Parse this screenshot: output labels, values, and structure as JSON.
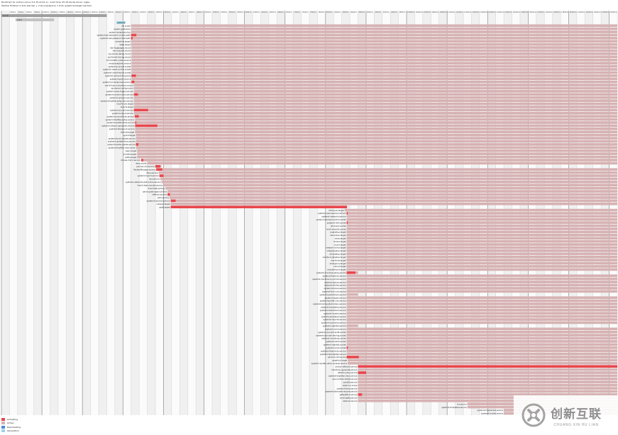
{
  "header": {
    "line1": "Bootchart for archiso (Linux 5.4.15-arch1-1) - boot time: 05:18 kernel-driver: ixgbe",
    "line2": "Startup finished in 6.0s (kernel) + 2.4s (userspace) = 8.4s; graphical.target reached"
  },
  "legend": [
    {
      "label": "Activating",
      "color": "#e8474d"
    },
    {
      "label": "Active",
      "color": "#d7b2b3"
    },
    {
      "label": "Deactivating",
      "color": "#4c8cdd"
    },
    {
      "label": "Generators",
      "color": "#9bd3e8"
    }
  ],
  "colors": {
    "active": "#d7b2b3",
    "activating": "#e8474d",
    "gridline": "#c9c9c9",
    "gridline_major": "#8d8d8d",
    "background_a": "#f0f0f0",
    "background_b": "#fbfbfb",
    "kernel": "#9f9f9f",
    "initrd": "#c3c3c3",
    "generator": "#9bd3e8"
  },
  "chart_data": {
    "type": "table",
    "ylabel": "",
    "xlabel": "",
    "x_unit": "s",
    "xlim": [
      0,
      15.2
    ],
    "tick_step": 0.2,
    "major_tick_every": 5,
    "phases": [
      {
        "name": "kernel",
        "label": "kernel",
        "start": 0.0,
        "end": 2.6
      },
      {
        "name": "initrd",
        "label": "initrd",
        "start": 0.35,
        "end": 1.3
      }
    ],
    "units": [
      {
        "name": "systemd",
        "start": 2.84,
        "activating": 0.0,
        "active_end": 15.2,
        "kind": "generator"
      },
      {
        "name": "init.scope",
        "start": 3.2,
        "activating": 0.0,
        "active_end": 15.2
      },
      {
        "name": "system-getty.slice",
        "start": 3.2,
        "activating": 0.0,
        "active_end": 15.2
      },
      {
        "name": "system-modprobe.slice",
        "start": 3.2,
        "activating": 0.0,
        "active_end": 15.2
      },
      {
        "name": "systemd-ask-password-console.path",
        "start": 3.2,
        "activating": 0.13,
        "active_end": 15.2
      },
      {
        "name": "systemd-ask-password-wall.path",
        "start": 3.2,
        "activating": 0.04,
        "active_end": 15.2
      },
      {
        "name": "remote-fs.target",
        "start": 3.2,
        "activating": 0.0,
        "active_end": 15.2
      },
      {
        "name": "swap.target",
        "start": 3.2,
        "activating": 0.0,
        "active_end": 15.2
      },
      {
        "name": "dev-hugepages.mount",
        "start": 3.21,
        "activating": 0.0,
        "active_end": 15.2
      },
      {
        "name": "dev-mqueue.mount",
        "start": 3.21,
        "activating": 0.0,
        "active_end": 15.2
      },
      {
        "name": "sys-kernel-debug.mount",
        "start": 3.21,
        "activating": 0.0,
        "active_end": 15.2
      },
      {
        "name": "sys-kernel-tracing.mount",
        "start": 3.21,
        "activating": 0.0,
        "active_end": 15.2
      },
      {
        "name": "kmod-static-nodes.service",
        "start": 3.21,
        "activating": 0.0,
        "active_end": 15.2
      },
      {
        "name": "modprobe@drm.service",
        "start": 3.21,
        "activating": 0.0,
        "active_end": 15.2
      },
      {
        "name": "systemd-journald.socket",
        "start": 3.21,
        "activating": 0.0,
        "active_end": 15.2
      },
      {
        "name": "systemd-udevd-control.socket",
        "start": 3.21,
        "activating": 0.0,
        "active_end": 15.2
      },
      {
        "name": "systemd-udevd-kernel.socket",
        "start": 3.21,
        "activating": 0.0,
        "active_end": 15.2
      },
      {
        "name": "systemd-remount-fs.service",
        "start": 3.21,
        "activating": 0.11,
        "active_end": 15.2
      },
      {
        "name": "systemd-sysctl.service",
        "start": 3.21,
        "activating": 0.0,
        "active_end": 15.2
      },
      {
        "name": "systemd-modules-load.service",
        "start": 3.21,
        "activating": 0.07,
        "active_end": 15.2
      },
      {
        "name": "sys-fs-fuse-connections.mount",
        "start": 3.27,
        "activating": 0.0,
        "active_end": 15.2
      },
      {
        "name": "sys-kernel-config.mount",
        "start": 3.27,
        "activating": 0.0,
        "active_end": 15.2
      },
      {
        "name": "systemd-udev-trigger.service",
        "start": 3.27,
        "activating": 0.0,
        "active_end": 15.2
      },
      {
        "name": "systemd-random-seed.service",
        "start": 3.27,
        "activating": 0.1,
        "active_end": 15.2
      },
      {
        "name": "systemd-sysusers.service",
        "start": 3.27,
        "activating": 0.0,
        "active_end": 15.2
      },
      {
        "name": "systemd-tmpfiles-setup-dev.service",
        "start": 3.27,
        "activating": 0.0,
        "active_end": 15.2
      },
      {
        "name": "local-fs-pre.target",
        "start": 3.27,
        "activating": 0.0,
        "active_end": 15.2
      },
      {
        "name": "local-fs.target",
        "start": 3.27,
        "activating": 0.0,
        "active_end": 15.2
      },
      {
        "name": "systemd-journald.service",
        "start": 3.27,
        "activating": 0.35,
        "active_end": 15.2
      },
      {
        "name": "systemd-udevd.service",
        "start": 3.27,
        "activating": 0.0,
        "active_end": 15.2
      },
      {
        "name": "systemd-journal-flush.service",
        "start": 3.29,
        "activating": 0.1,
        "active_end": 15.2
      },
      {
        "name": "systemd-tmpfiles-setup.service",
        "start": 3.3,
        "activating": 0.0,
        "active_end": 15.2
      },
      {
        "name": "systemd-update-utmp.service",
        "start": 3.3,
        "activating": 0.03,
        "active_end": 15.2
      },
      {
        "name": "systemd-network-generator.service",
        "start": 3.3,
        "activating": 0.55,
        "active_end": 15.2
      },
      {
        "name": "systemd-timesyncd.service",
        "start": 3.3,
        "activating": 0.0,
        "active_end": 15.2
      },
      {
        "name": "time-set.target",
        "start": 3.3,
        "activating": 0.0,
        "active_end": 15.2
      },
      {
        "name": "sysinit.target",
        "start": 3.32,
        "activating": 0.0,
        "active_end": 15.2
      },
      {
        "name": "systemd-boot-update.service",
        "start": 3.32,
        "activating": 0.0,
        "active_end": 15.2
      },
      {
        "name": "systemd-update-done.service",
        "start": 3.32,
        "activating": 0.0,
        "active_end": 15.2
      },
      {
        "name": "systemd-hwdb-update.service",
        "start": 3.32,
        "activating": 0.06,
        "active_end": 15.2
      },
      {
        "name": "systemd-tmpfiles-clean.timer",
        "start": 3.32,
        "activating": 0.0,
        "active_end": 15.2
      },
      {
        "name": "basic.target",
        "start": 3.35,
        "activating": 0.0,
        "active_end": 15.2
      },
      {
        "name": "sockets.target",
        "start": 3.35,
        "activating": 0.0,
        "active_end": 15.2
      },
      {
        "name": "paths.target",
        "start": 3.35,
        "activating": 0.0,
        "active_end": 15.2
      },
      {
        "name": "choose-mirror.service",
        "start": 3.45,
        "activating": 0.05,
        "active_end": 15.2
      },
      {
        "name": "dbus.socket",
        "start": 3.6,
        "activating": 0.0,
        "active_end": 15.2
      },
      {
        "name": "pacman-init.service",
        "start": 3.8,
        "activating": 0.12,
        "active_end": 3.95
      },
      {
        "name": "ModemManager.service",
        "start": 3.82,
        "activating": 0.15,
        "active_end": 15.2
      },
      {
        "name": "dbus.service",
        "start": 3.88,
        "activating": 0.0,
        "active_end": 15.2
      },
      {
        "name": "systemd-logind.service",
        "start": 3.9,
        "activating": 0.1,
        "active_end": 15.2
      },
      {
        "name": "iwd.service",
        "start": 3.92,
        "activating": 0.0,
        "active_end": 15.2
      },
      {
        "name": "systemd-networkd-wait-online.service",
        "start": 3.95,
        "activating": 0.0,
        "active_end": 15.2
      },
      {
        "name": "livecd-alsa-unmuter.service",
        "start": 4.0,
        "activating": 0.0,
        "active_end": 15.2
      },
      {
        "name": "livecd-talk.service",
        "start": 4.05,
        "activating": 0.0,
        "active_end": 15.2
      },
      {
        "name": "qemu-guest-agent.service",
        "start": 4.1,
        "activating": 0.0,
        "active_end": 15.2
      },
      {
        "name": "reflector.service",
        "start": 4.1,
        "activating": 0.06,
        "active_end": 15.2
      },
      {
        "name": "sshd.service",
        "start": 4.15,
        "activating": 0.0,
        "active_end": 15.2
      },
      {
        "name": "systemd-resolved.service",
        "start": 4.18,
        "activating": 0.12,
        "active_end": 15.2
      },
      {
        "name": "network.target",
        "start": 4.18,
        "activating": 0.0,
        "active_end": 15.2
      },
      {
        "name": "getty.target",
        "start": 4.18,
        "activating": 4.35,
        "active_end": 8.52
      },
      {
        "name": "multi-user.target",
        "start": 8.47,
        "activating": 0.0,
        "active_end": 15.2
      },
      {
        "name": "systemd-user-sessions.service",
        "start": 8.52,
        "activating": 0.03,
        "active_end": 15.2
      },
      {
        "name": "systemd-networkd.service",
        "start": 8.52,
        "activating": 0.0,
        "active_end": 15.2
      },
      {
        "name": "systemd-resolved-varlink.socket",
        "start": 8.52,
        "activating": 0.0,
        "active_end": 15.2
      },
      {
        "name": "systemd-rfkill.socket",
        "start": 8.52,
        "activating": 0.03,
        "active_end": 15.2
      },
      {
        "name": "dm-event.socket",
        "start": 8.52,
        "activating": 0.0,
        "active_end": 15.2
      },
      {
        "name": "lvm2-lvmpolld.socket",
        "start": 8.52,
        "activating": 0.0,
        "active_end": 15.2
      },
      {
        "name": "cryptsetup.target",
        "start": 8.52,
        "activating": 0.0,
        "active_end": 15.2
      },
      {
        "name": "nss-lookup.target",
        "start": 8.52,
        "activating": 0.0,
        "active_end": 15.2
      },
      {
        "name": "slices.target",
        "start": 8.52,
        "activating": 0.0,
        "active_end": 15.2
      },
      {
        "name": "timers.target",
        "start": 8.52,
        "activating": 0.0,
        "active_end": 15.2
      },
      {
        "name": "sound.target",
        "start": 8.52,
        "activating": 0.0,
        "active_end": 15.2
      },
      {
        "name": "network-online.target",
        "start": 8.52,
        "activating": 0.0,
        "active_end": 15.2
      },
      {
        "name": "integritysetup.target",
        "start": 8.52,
        "activating": 0.0,
        "active_end": 15.2
      },
      {
        "name": "veritysetup.target",
        "start": 8.52,
        "activating": 0.0,
        "active_end": 15.2
      },
      {
        "name": "remote-cryptsetup.target",
        "start": 8.52,
        "activating": 0.0,
        "active_end": 15.2
      },
      {
        "name": "machines.target",
        "start": 8.52,
        "activating": 0.0,
        "active_end": 15.2
      },
      {
        "name": "emergency.target",
        "start": 8.52,
        "activating": 0.0,
        "active_end": 15.2
      },
      {
        "name": "rescue.target",
        "start": 8.52,
        "activating": 0.0,
        "active_end": 15.2
      },
      {
        "name": "remote-fs-pre.target",
        "start": 8.52,
        "activating": 0.0,
        "active_end": 15.2
      },
      {
        "name": "systemd-vconsole-setup.service",
        "start": 8.52,
        "activating": 0.22,
        "active_end": 8.8
      },
      {
        "name": "systemd-firstboot.service",
        "start": 8.52,
        "activating": 0.0,
        "active_end": 15.2
      },
      {
        "name": "systemd-machine-id-commit.service",
        "start": 8.52,
        "activating": 0.0,
        "active_end": 15.2
      },
      {
        "name": "systemd-pstore.service",
        "start": 8.52,
        "activating": 0.0,
        "active_end": 15.2
      },
      {
        "name": "systemd-binfmt.service",
        "start": 8.52,
        "activating": 0.0,
        "active_end": 15.2
      },
      {
        "name": "systemd-homed.service",
        "start": 8.52,
        "activating": 0.0,
        "active_end": 15.2
      },
      {
        "name": "systemd-fsck-root.service",
        "start": 8.52,
        "activating": 0.0,
        "active_end": 15.2
      },
      {
        "name": "systemd-quotacheck.service",
        "start": 8.52,
        "activating": 0.0,
        "active_end": 8.8
      },
      {
        "name": "systemd-repart.service",
        "start": 8.52,
        "activating": 0.0,
        "active_end": 15.2
      },
      {
        "name": "systemd-growfs-root.service",
        "start": 8.52,
        "activating": 0.0,
        "active_end": 15.2
      },
      {
        "name": "systemd-boot-system-token.service",
        "start": 8.52,
        "activating": 0.0,
        "active_end": 15.2
      },
      {
        "name": "systemd-timedated.service",
        "start": 8.52,
        "activating": 0.0,
        "active_end": 15.2
      },
      {
        "name": "systemd-hostnamed.service",
        "start": 8.52,
        "activating": 0.0,
        "active_end": 15.2
      },
      {
        "name": "systemd-localed.service",
        "start": 8.52,
        "activating": 0.0,
        "active_end": 15.2
      },
      {
        "name": "systemd-portabled.service",
        "start": 8.52,
        "activating": 0.0,
        "active_end": 15.2
      },
      {
        "name": "systemd-importd.service",
        "start": 8.52,
        "activating": 0.0,
        "active_end": 15.2
      },
      {
        "name": "systemd-machined.service",
        "start": 8.52,
        "activating": 0.0,
        "active_end": 15.2
      },
      {
        "name": "systemd-userdbd.service",
        "start": 8.52,
        "activating": 0.0,
        "active_end": 8.8
      },
      {
        "name": "systemd-oomd.service",
        "start": 8.52,
        "activating": 0.0,
        "active_end": 15.2
      },
      {
        "name": "systemd-journald-audit.socket",
        "start": 8.52,
        "activating": 0.0,
        "active_end": 15.2
      },
      {
        "name": "systemd-journald-dev-log.socket",
        "start": 8.52,
        "activating": 0.0,
        "active_end": 15.2
      },
      {
        "name": "systemd-coredump.socket",
        "start": 8.52,
        "activating": 0.0,
        "active_end": 15.2
      },
      {
        "name": "systemd-initctl.socket",
        "start": 8.52,
        "activating": 0.0,
        "active_end": 15.2
      },
      {
        "name": "systemd-userdbd.socket",
        "start": 8.52,
        "activating": 0.0,
        "active_end": 15.2
      },
      {
        "name": "systemd-oomd.socket",
        "start": 8.52,
        "activating": 0.03,
        "active_end": 15.2
      },
      {
        "name": "systemd-bless-boot.service",
        "start": 8.52,
        "activating": 0.0,
        "active_end": 15.2
      },
      {
        "name": "systemd-backlight@.service",
        "start": 8.52,
        "activating": 0.0,
        "active_end": 15.2
      },
      {
        "name": "pacman-init.service",
        "start": 8.52,
        "activating": 0.3,
        "active_end": 15.2
      },
      {
        "name": "graphical.target",
        "start": 8.55,
        "activating": 0.0,
        "active_end": 15.2
      },
      {
        "name": "systemd-update-utmp-runlevel.service",
        "start": 8.55,
        "activating": 0.0,
        "active_end": 15.2
      },
      {
        "name": "archiso-reflector.service",
        "start": 8.8,
        "activating": 6.4,
        "active_end": 15.2
      },
      {
        "name": "mkinitcpio-generate.service",
        "start": 8.8,
        "activating": 0.0,
        "active_end": 15.2
      },
      {
        "name": "reflector-retry.service",
        "start": 8.8,
        "activating": 0.2,
        "active_end": 15.2
      },
      {
        "name": "systemd-tmpfiles-clean.service",
        "start": 8.8,
        "activating": 0.0,
        "active_end": 15.2
      },
      {
        "name": "user-runtime-dir@0.service",
        "start": 8.8,
        "activating": 0.0,
        "active_end": 15.2
      },
      {
        "name": "user@0.service",
        "start": 8.8,
        "activating": 0.0,
        "active_end": 15.2
      },
      {
        "name": "session-1.scope",
        "start": 8.8,
        "activating": 0.0,
        "active_end": 15.2
      },
      {
        "name": "systemd-fsckd.service",
        "start": 8.8,
        "activating": 0.0,
        "active_end": 15.2
      },
      {
        "name": "systemd-hibernate-resume.service",
        "start": 8.8,
        "activating": 0.0,
        "active_end": 15.2
      },
      {
        "name": "getty@tty1.service",
        "start": 8.8,
        "activating": 0.1,
        "active_end": 15.2
      },
      {
        "name": "serial-getty.service",
        "start": 8.8,
        "activating": 0.0,
        "active_end": 15.2
      },
      {
        "name": "network.service",
        "start": 8.8,
        "activating": 0.0,
        "active_end": 15.2
      },
      {
        "name": "tor.service",
        "start": 11.5,
        "activating": 0.0,
        "active_end": 15.2
      },
      {
        "name": "systemd-timedated.service",
        "start": 11.5,
        "activating": 0.0,
        "active_end": 15.2
      },
      {
        "name": "systemd-hostnamed.service",
        "start": 12.4,
        "activating": 0.0,
        "active_end": 15.2
      },
      {
        "name": "systemd-localed.service",
        "start": 12.4,
        "activating": 0.0,
        "active_end": 15.2
      }
    ]
  },
  "watermark": {
    "cn": "创新互联",
    "en": "CHUANG XIN HU LIAN"
  }
}
